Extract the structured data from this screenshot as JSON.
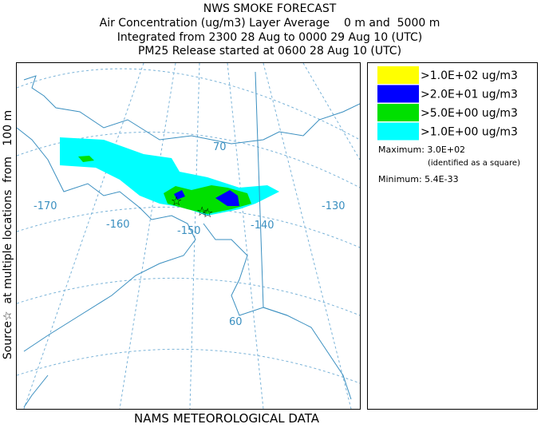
{
  "header": {
    "lines": [
      "NWS SMOKE FORECAST",
      "Air Concentration (ug/m3) Layer Average    0 m and  5000 m",
      "Integrated from 2300 28 Aug to 0000 29 Aug 10 (UTC)",
      "PM25 Release started at 0600 28 Aug 10 (UTC)"
    ]
  },
  "side_label": "Source☆  at multiple locations  from   100 m",
  "footer": "NAMS METEOROLOGICAL DATA",
  "legend": {
    "items": [
      {
        "label": ">1.0E+02 ug/m3",
        "color": "#ffff00"
      },
      {
        "label": ">2.0E+01 ug/m3",
        "color": "#0000ff"
      },
      {
        "label": ">5.0E+00 ug/m3",
        "color": "#00e000"
      },
      {
        "label": ">1.0E+00 ug/m3",
        "color": "#00ffff"
      }
    ],
    "maximum": "Maximum: 3.0E+02",
    "maximum_note": "(identified as a square)",
    "minimum": "Minimum: 5.4E-33"
  },
  "map": {
    "labels": [
      "-170",
      "-160",
      "-150",
      "-140",
      "-130",
      "70",
      "60"
    ]
  }
}
